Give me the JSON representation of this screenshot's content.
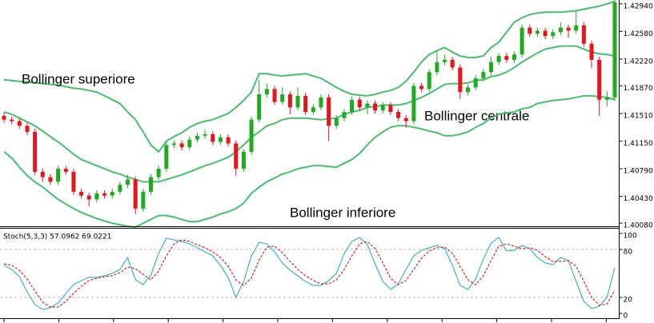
{
  "chart_data": [
    {
      "type": "candlestick",
      "categories": [
        null,
        null,
        null,
        null,
        null,
        null,
        null,
        null,
        null,
        null,
        null,
        null,
        null,
        null,
        null,
        null,
        null,
        null,
        null,
        null,
        null,
        null,
        null,
        null,
        null,
        null,
        null,
        null,
        null,
        null,
        null,
        null,
        null,
        null,
        null,
        null,
        null,
        null,
        null,
        null,
        null,
        null,
        null,
        null,
        null,
        null,
        null,
        null,
        null,
        null,
        null,
        null,
        null,
        null,
        null,
        null,
        null,
        null,
        null,
        null,
        null,
        null,
        null,
        null,
        null,
        null,
        null,
        null,
        null,
        null,
        null,
        null,
        null,
        null,
        null,
        null,
        null,
        null,
        null,
        null
      ],
      "open": [
        1.4148,
        1.4143,
        1.4141,
        1.4135,
        1.4127,
        1.4075,
        1.4068,
        1.4062,
        1.4079,
        1.4075,
        1.4049,
        1.4044,
        1.4039,
        1.4047,
        1.4044,
        1.4049,
        1.4058,
        1.4065,
        1.4027,
        1.4049,
        1.4068,
        1.4079,
        1.411,
        1.4112,
        1.4107,
        1.4117,
        1.4122,
        1.4124,
        1.4114,
        1.412,
        1.4112,
        1.4079,
        1.4101,
        1.4143,
        1.4176,
        1.4183,
        1.4166,
        1.4176,
        1.4159,
        1.4174,
        1.4153,
        1.4159,
        1.4172,
        1.4135,
        1.4145,
        1.4153,
        1.4169,
        1.4159,
        1.4164,
        1.4155,
        1.4162,
        1.4153,
        1.4145,
        1.4141,
        1.4187,
        1.4183,
        1.4205,
        1.4218,
        1.4221,
        1.4211,
        1.4179,
        1.4185,
        1.4197,
        1.4205,
        1.4218,
        1.4226,
        1.4221,
        1.4228,
        1.4263,
        1.4255,
        1.4259,
        1.4252,
        1.4257,
        1.4263,
        1.4259,
        1.4266,
        1.4242,
        1.4221,
        1.4169,
        1.4172
      ],
      "high": [
        1.4152,
        1.4147,
        1.4145,
        1.4139,
        1.4131,
        1.4079,
        1.4072,
        1.4083,
        1.4083,
        1.4079,
        1.4053,
        1.4048,
        1.4051,
        1.4051,
        1.4053,
        1.4062,
        1.4071,
        1.4069,
        1.4053,
        1.4072,
        1.4083,
        1.4114,
        1.4116,
        1.4116,
        1.4121,
        1.4126,
        1.413,
        1.4128,
        1.4124,
        1.4124,
        1.4116,
        1.4105,
        1.4147,
        1.4195,
        1.419,
        1.4187,
        1.4185,
        1.418,
        1.4185,
        1.4178,
        1.4163,
        1.4176,
        1.4176,
        1.4149,
        1.4157,
        1.4173,
        1.4173,
        1.4168,
        1.4168,
        1.4166,
        1.4166,
        1.4157,
        1.4149,
        1.4191,
        1.4191,
        1.4209,
        1.4232,
        1.4228,
        1.4225,
        1.4215,
        1.4189,
        1.4201,
        1.4209,
        1.4225,
        1.423,
        1.423,
        1.4232,
        1.4267,
        1.4267,
        1.4263,
        1.4263,
        1.4261,
        1.427,
        1.4267,
        1.4285,
        1.427,
        1.4246,
        1.4225,
        1.418,
        1.4299
      ],
      "low": [
        1.4139,
        1.4137,
        1.4131,
        1.4123,
        1.4071,
        1.4062,
        1.4058,
        1.4058,
        1.4071,
        1.4045,
        1.404,
        1.403,
        1.4035,
        1.404,
        1.404,
        1.4045,
        1.4054,
        1.402,
        1.4023,
        1.4045,
        1.4064,
        1.4075,
        1.4106,
        1.4103,
        1.4103,
        1.4113,
        1.4118,
        1.411,
        1.411,
        1.4108,
        1.407,
        1.4075,
        1.4097,
        1.4139,
        1.4172,
        1.4162,
        1.4162,
        1.415,
        1.4155,
        1.4149,
        1.4149,
        1.4155,
        1.4115,
        1.4131,
        1.4141,
        1.4149,
        1.4155,
        1.415,
        1.4151,
        1.4151,
        1.4149,
        1.4141,
        1.4132,
        1.4137,
        1.4179,
        1.4179,
        1.4201,
        1.4214,
        1.4207,
        1.417,
        1.4175,
        1.4181,
        1.4193,
        1.4201,
        1.4214,
        1.4217,
        1.4217,
        1.4224,
        1.4251,
        1.4251,
        1.4248,
        1.4248,
        1.4253,
        1.425,
        1.4255,
        1.4238,
        1.421,
        1.4148,
        1.416,
        1.4168
      ],
      "close": [
        1.4143,
        1.4141,
        1.4135,
        1.4127,
        1.4075,
        1.4068,
        1.4062,
        1.4079,
        1.4075,
        1.4049,
        1.4044,
        1.4039,
        1.4047,
        1.4044,
        1.4049,
        1.4058,
        1.4065,
        1.4027,
        1.4049,
        1.4068,
        1.4079,
        1.411,
        1.4112,
        1.4107,
        1.4117,
        1.4122,
        1.4124,
        1.4114,
        1.412,
        1.4112,
        1.4079,
        1.4101,
        1.4143,
        1.4176,
        1.4183,
        1.4166,
        1.4176,
        1.4159,
        1.4174,
        1.4153,
        1.4159,
        1.4172,
        1.4135,
        1.4145,
        1.4153,
        1.4169,
        1.4159,
        1.4164,
        1.4155,
        1.4162,
        1.4153,
        1.4145,
        1.4141,
        1.4187,
        1.4183,
        1.4205,
        1.4218,
        1.4221,
        1.4211,
        1.4179,
        1.4185,
        1.4197,
        1.4205,
        1.4218,
        1.4226,
        1.4221,
        1.4228,
        1.4263,
        1.4255,
        1.4259,
        1.4252,
        1.4257,
        1.4263,
        1.4259,
        1.4266,
        1.4242,
        1.4221,
        1.4169,
        1.4172,
        1.4296
      ],
      "up_color": "#1faa1f",
      "down_color": "#e8141b",
      "series": [
        {
          "name": "Bollinger superiore",
          "color": "#46bf6a",
          "values": [
            1.4195,
            1.4194,
            1.4193,
            1.4192,
            1.4191,
            1.419,
            1.4189,
            1.4188,
            1.4186,
            1.4184,
            1.4183,
            1.4181,
            1.4179,
            1.4174,
            1.4169,
            1.4164,
            1.4153,
            1.4143,
            1.4127,
            1.411,
            1.4101,
            1.4115,
            1.4121,
            1.4126,
            1.4133,
            1.4138,
            1.4141,
            1.4143,
            1.4147,
            1.4151,
            1.4159,
            1.4168,
            1.4179,
            1.4203,
            1.4203,
            1.4201,
            1.42,
            1.4201,
            1.4202,
            1.4203,
            1.42,
            1.4197,
            1.4191,
            1.4185,
            1.418,
            1.4176,
            1.4175,
            1.4174,
            1.4176,
            1.4179,
            1.4181,
            1.4185,
            1.4193,
            1.4205,
            1.4218,
            1.4228,
            1.4233,
            1.4237,
            1.4231,
            1.4226,
            1.4224,
            1.4224,
            1.4226,
            1.4237,
            1.4244,
            1.4257,
            1.427,
            1.4276,
            1.428,
            1.4282,
            1.4283,
            1.4283,
            1.4283,
            1.4284,
            1.4285,
            1.4287,
            1.4289,
            1.4291,
            1.4294,
            1.4297
          ]
        },
        {
          "name": "Bollinger centrale",
          "color": "#46bf6a",
          "values": [
            1.4153,
            1.415,
            1.4145,
            1.414,
            1.4135,
            1.4128,
            1.4121,
            1.4114,
            1.4106,
            1.4098,
            1.4091,
            1.4087,
            1.4083,
            1.4079,
            1.4075,
            1.4072,
            1.4068,
            1.4065,
            1.4062,
            1.4062,
            1.4062,
            1.4065,
            1.4068,
            1.4071,
            1.4075,
            1.4079,
            1.4083,
            1.4086,
            1.409,
            1.4094,
            1.4101,
            1.411,
            1.412,
            1.4127,
            1.4135,
            1.4138,
            1.4143,
            1.4145,
            1.4145,
            1.4145,
            1.4144,
            1.4143,
            1.4144,
            1.4145,
            1.415,
            1.4153,
            1.4155,
            1.4159,
            1.416,
            1.4162,
            1.4162,
            1.4162,
            1.4164,
            1.4168,
            1.4172,
            1.4177,
            1.4183,
            1.4189,
            1.419,
            1.419,
            1.4191,
            1.4194,
            1.4195,
            1.4199,
            1.4201,
            1.4205,
            1.4211,
            1.4218,
            1.4224,
            1.423,
            1.4235,
            1.4237,
            1.4239,
            1.4239,
            1.4239,
            1.4235,
            1.4231,
            1.4229,
            1.4228,
            1.4226
          ]
        },
        {
          "name": "Bollinger inferiore",
          "color": "#46bf6a",
          "values": [
            1.4101,
            1.4093,
            1.4081,
            1.407,
            1.4062,
            1.4055,
            1.4047,
            1.4039,
            1.4033,
            1.4027,
            1.4022,
            1.4018,
            1.4014,
            1.4011,
            1.4008,
            1.4006,
            1.4004,
            1.4003,
            1.4008,
            1.4013,
            1.4018,
            1.4018,
            1.4016,
            1.4013,
            1.401,
            1.401,
            1.4013,
            1.4016,
            1.402,
            1.4023,
            1.4027,
            1.4034,
            1.4047,
            1.4055,
            1.4062,
            1.4067,
            1.4072,
            1.4075,
            1.4079,
            1.4081,
            1.4083,
            1.4083,
            1.4082,
            1.4081,
            1.4086,
            1.4091,
            1.4099,
            1.411,
            1.412,
            1.4127,
            1.4133,
            1.4135,
            1.4135,
            1.4133,
            1.4131,
            1.4128,
            1.4126,
            1.4122,
            1.4122,
            1.4124,
            1.4127,
            1.4133,
            1.4138,
            1.4145,
            1.415,
            1.4152,
            1.4153,
            1.4157,
            1.4159,
            1.4164,
            1.4166,
            1.4168,
            1.4169,
            1.417,
            1.4172,
            1.4174,
            1.4174,
            1.4173,
            1.4172,
            1.4169
          ]
        }
      ],
      "ylim": [
        1.4004,
        1.4299
      ],
      "yticks": [
        {
          "value": 1.4294,
          "label": "1.42940"
        },
        {
          "value": 1.4258,
          "label": "1.42580"
        },
        {
          "value": 1.4222,
          "label": "1.42220"
        },
        {
          "value": 1.4187,
          "label": "1.41870"
        },
        {
          "value": 1.4151,
          "label": "1.41510"
        },
        {
          "value": 1.4115,
          "label": "1.41150"
        },
        {
          "value": 1.4079,
          "label": "1.40790"
        },
        {
          "value": 1.4043,
          "label": "1.40430"
        },
        {
          "value": 1.4008,
          "label": "1.40080"
        }
      ]
    },
    {
      "type": "line",
      "title": "Stoch(5,3,3) 57.0962 69.0221",
      "series": [
        {
          "color": "#3fb3c6",
          "style": "solid",
          "values": [
            60,
            55,
            46,
            27,
            11,
            5,
            7,
            13,
            25,
            36,
            41,
            45,
            45,
            47,
            50,
            55,
            70,
            42,
            36,
            48,
            75,
            94,
            92,
            90,
            87,
            82,
            77,
            72,
            60,
            45,
            20,
            40,
            72,
            89,
            87,
            77,
            63,
            54,
            47,
            40,
            35,
            35,
            41,
            50,
            75,
            90,
            95,
            86,
            62,
            40,
            30,
            37,
            55,
            72,
            79,
            82,
            85,
            81,
            60,
            35,
            30,
            43,
            68,
            88,
            95,
            78,
            79,
            85,
            81,
            70,
            63,
            61,
            70,
            66,
            40,
            15,
            6,
            9,
            20,
            57
          ]
        },
        {
          "color": "#e02020",
          "style": "dashed",
          "values": [
            62,
            60,
            54,
            43,
            28,
            14,
            8,
            8,
            15,
            25,
            34,
            41,
            44,
            46,
            47,
            51,
            58,
            56,
            49,
            42,
            53,
            72,
            87,
            92,
            90,
            86,
            82,
            77,
            70,
            59,
            42,
            35,
            44,
            67,
            83,
            84,
            76,
            65,
            55,
            47,
            41,
            37,
            37,
            42,
            55,
            72,
            87,
            90,
            81,
            63,
            44,
            36,
            41,
            55,
            69,
            78,
            82,
            83,
            75,
            59,
            42,
            36,
            47,
            66,
            84,
            87,
            84,
            81,
            82,
            79,
            71,
            65,
            65,
            66,
            59,
            40,
            20,
            10,
            12,
            29
          ]
        }
      ],
      "levels": [
        80,
        20
      ],
      "ylim": [
        -6,
        106
      ],
      "yticks": [
        100,
        80,
        20,
        0
      ]
    }
  ]
}
